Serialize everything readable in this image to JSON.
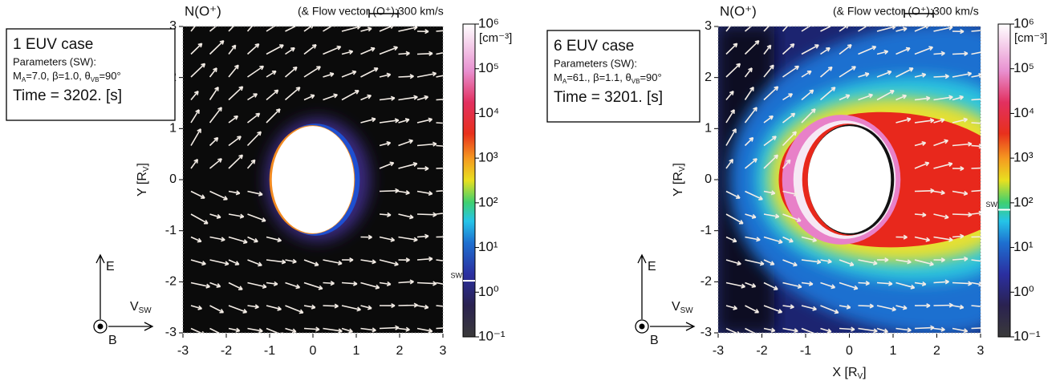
{
  "chart_data": [
    {
      "type": "heatmap",
      "title": "N(O⁺)",
      "annotation": "(& Flow vector (O⁺):",
      "scale_label": "300 km/s",
      "case": "1 EUV case",
      "parameters": "Parameters (SW):",
      "params_parts": [
        "M",
        "A",
        "=7.0, β=1.0, θ",
        "VB",
        "=90°"
      ],
      "time": "Time = 3202. [s]",
      "ylabel_parts": [
        "Y [R",
        "V",
        "]"
      ],
      "xlim": [
        -3,
        3
      ],
      "ylim": [
        -3,
        3
      ],
      "xticks": [
        -3,
        -2,
        -1,
        0,
        1,
        2,
        3
      ],
      "yticks": [
        -3,
        -2,
        -1,
        0,
        1,
        2,
        3
      ],
      "colorbar_label": "[cm⁻³]",
      "clim": [
        0.1,
        1000000
      ],
      "clog": true,
      "cticks": [
        {
          "value": 0.1,
          "label": "10⁻¹"
        },
        {
          "value": 1,
          "label": "10⁰"
        },
        {
          "value": 10,
          "label": "10¹"
        },
        {
          "value": 100,
          "label": "10²"
        },
        {
          "value": 1000,
          "label": "10³"
        },
        {
          "value": 10000,
          "label": "10⁴"
        },
        {
          "value": 100000,
          "label": "10⁵"
        },
        {
          "value": 1000000,
          "label": "10⁶"
        }
      ],
      "sw_marker": {
        "value": 1.8,
        "label": "SW"
      },
      "axes_key": {
        "up": "E",
        "right_parts": [
          "V",
          "SW"
        ],
        "out": "B"
      }
    },
    {
      "type": "heatmap",
      "title": "N(O⁺)",
      "annotation": "(& Flow vector (O⁺):",
      "scale_label": "300 km/s",
      "case": "6 EUV case",
      "parameters": "Parameters (SW):",
      "params_parts": [
        "M",
        "A",
        "=61., β=1.1, θ",
        "VB",
        "=90°"
      ],
      "time": "Time = 3201. [s]",
      "ylabel_parts": [
        "Y [R",
        "V",
        "]"
      ],
      "xlabel_parts": [
        "X [R",
        "V",
        "]"
      ],
      "xlim": [
        -3,
        3
      ],
      "ylim": [
        -3,
        3
      ],
      "xticks": [
        -3,
        -2,
        -1,
        0,
        1,
        2,
        3
      ],
      "yticks": [
        -3,
        -2,
        -1,
        0,
        1,
        2,
        3
      ],
      "colorbar_label": "[cm⁻³]",
      "clim": [
        0.1,
        1000000
      ],
      "clog": true,
      "cticks": [
        {
          "value": 0.1,
          "label": "10⁻¹"
        },
        {
          "value": 1,
          "label": "10⁰"
        },
        {
          "value": 10,
          "label": "10¹"
        },
        {
          "value": 100,
          "label": "10²"
        },
        {
          "value": 1000,
          "label": "10³"
        },
        {
          "value": 10000,
          "label": "10⁴"
        },
        {
          "value": 100000,
          "label": "10⁵"
        },
        {
          "value": 1000000,
          "label": "10⁶"
        }
      ],
      "sw_marker": {
        "value": 70,
        "label": "SW"
      },
      "axes_key": {
        "up": "E",
        "right_parts": [
          "V",
          "SW"
        ],
        "out": "B"
      }
    }
  ]
}
